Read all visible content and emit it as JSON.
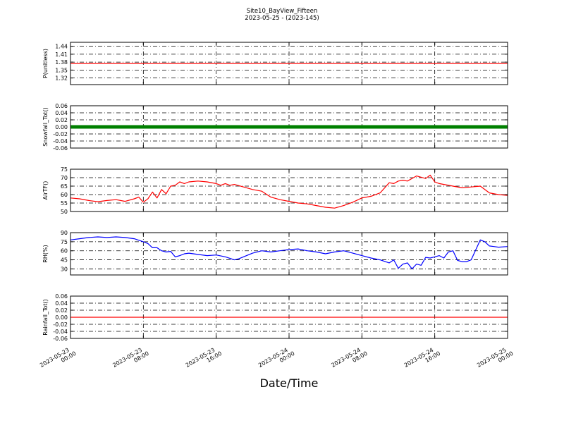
{
  "chart_data": {
    "type": "line",
    "title": "Site10_BayView_Fifteen",
    "subtitle": "2023-05-25 - (2023-145)",
    "xlabel": "Date/Time",
    "x_ticks": [
      {
        "line1": "2023-05-23",
        "line2": "00:00"
      },
      {
        "line1": "2023-05-23",
        "line2": "08:00"
      },
      {
        "line1": "2023-05-23",
        "line2": "16:00"
      },
      {
        "line1": "2023-05-24",
        "line2": "00:00"
      },
      {
        "line1": "2023-05-24",
        "line2": "08:00"
      },
      {
        "line1": "2023-05-24",
        "line2": "16:00"
      },
      {
        "line1": "2023-05-25",
        "line2": "00:00"
      }
    ],
    "x_range_hours": [
      0,
      48
    ],
    "grid": true,
    "panels": [
      {
        "ylabel": "P(unitless)",
        "ylim": [
          1.295,
          1.455
        ],
        "yticks": [
          "1.32",
          "1.35",
          "1.38",
          "1.41",
          "1.44"
        ],
        "ytick_values": [
          1.32,
          1.35,
          1.38,
          1.41,
          1.44
        ],
        "color": "#ff0000",
        "style": "line",
        "series": {
          "x": [
            0,
            48
          ],
          "y": [
            1.375,
            1.375
          ]
        }
      },
      {
        "ylabel": "Snowfall_Tot()",
        "ylim": [
          -0.06,
          0.06
        ],
        "yticks": [
          "-0.06",
          "-0.04",
          "-0.02",
          "0.00",
          "0.02",
          "0.04",
          "0.06"
        ],
        "ytick_values": [
          -0.06,
          -0.04,
          -0.02,
          0.0,
          0.02,
          0.04,
          0.06
        ],
        "color": "#008000",
        "style": "thick",
        "series": {
          "x": [
            0,
            48
          ],
          "y": [
            0,
            0
          ]
        }
      },
      {
        "ylabel": "AirTF()",
        "ylim": [
          50,
          75
        ],
        "yticks": [
          "50",
          "55",
          "60",
          "65",
          "70",
          "75"
        ],
        "ytick_values": [
          50,
          55,
          60,
          65,
          70,
          75
        ],
        "color": "#ff0000",
        "style": "line",
        "series": {
          "x": [
            0,
            1,
            2,
            3,
            4,
            5,
            6,
            7,
            7.5,
            8,
            8.5,
            9,
            9.5,
            10,
            10.5,
            11,
            11.5,
            12,
            12.5,
            13,
            14,
            15,
            16,
            16.5,
            17,
            17.5,
            18,
            19,
            20,
            21,
            22,
            23,
            24,
            25,
            26,
            27,
            28,
            29,
            30,
            31,
            32,
            33,
            34,
            35,
            35.5,
            36,
            36.5,
            37,
            38,
            39,
            39.5,
            40,
            40.5,
            41,
            42,
            43,
            44,
            45,
            46,
            47,
            48
          ],
          "y": [
            58,
            57.5,
            56.5,
            55.8,
            56.5,
            57,
            56,
            57.5,
            58.5,
            55.5,
            57.5,
            61.5,
            58,
            63,
            60.5,
            65,
            65.5,
            67.5,
            66.5,
            67.5,
            68,
            67.5,
            66.5,
            65.5,
            66.5,
            65.5,
            66,
            64.5,
            63,
            62,
            58.5,
            57,
            56,
            55,
            54.5,
            53.5,
            52.5,
            52,
            53.5,
            55.5,
            58,
            59,
            61,
            67,
            66.5,
            68,
            68.5,
            68,
            71,
            69.5,
            71.5,
            67.5,
            66.5,
            66,
            65,
            64,
            64.5,
            65,
            61,
            60,
            59.5
          ]
        }
      },
      {
        "ylabel": "RH(%)",
        "ylim": [
          20,
          90
        ],
        "yticks": [
          "30",
          "45",
          "60",
          "75",
          "90"
        ],
        "ytick_values": [
          30,
          45,
          60,
          75,
          90
        ],
        "color": "#0000ff",
        "style": "line",
        "series": {
          "x": [
            0,
            1,
            2,
            3,
            4,
            5,
            6,
            7,
            8,
            8.5,
            9,
            9.5,
            10,
            10.5,
            11,
            11.5,
            12,
            12.5,
            13,
            13.5,
            14,
            15,
            16,
            17,
            18,
            18.5,
            19,
            20,
            21,
            22,
            23,
            24,
            25,
            26,
            27,
            28,
            29,
            30,
            31,
            32,
            33,
            34,
            35,
            35.5,
            36,
            36.5,
            37,
            37.5,
            38,
            38.5,
            39,
            39.5,
            40,
            40.5,
            41,
            41.5,
            42,
            42.5,
            43,
            43.5,
            44,
            45,
            45.5,
            46,
            46.5,
            47,
            48
          ],
          "y": [
            78,
            80,
            82,
            83,
            82,
            83,
            82,
            80,
            75,
            72,
            65,
            65,
            60,
            58,
            59,
            50,
            52,
            55,
            56,
            55,
            54,
            52,
            53,
            50,
            45,
            47,
            50,
            56,
            60,
            58,
            60,
            62,
            63,
            60,
            58,
            55,
            58,
            60,
            56,
            52,
            48,
            45,
            40,
            45,
            31,
            38,
            40,
            30,
            38,
            36,
            49,
            48,
            50,
            52,
            48,
            58,
            60,
            44,
            42,
            42,
            45,
            78,
            75,
            68,
            67,
            66,
            67
          ]
        }
      },
      {
        "ylabel": "Rainfall_Tot()",
        "ylim": [
          -0.06,
          0.06
        ],
        "yticks": [
          "-0.06",
          "-0.04",
          "-0.02",
          "0.00",
          "0.02",
          "0.04",
          "0.06"
        ],
        "ytick_values": [
          -0.06,
          -0.04,
          -0.02,
          0.0,
          0.02,
          0.04,
          0.06
        ],
        "color": "#ff0000",
        "style": "line",
        "series": {
          "x": [
            0,
            48
          ],
          "y": [
            0,
            0
          ]
        }
      }
    ]
  }
}
